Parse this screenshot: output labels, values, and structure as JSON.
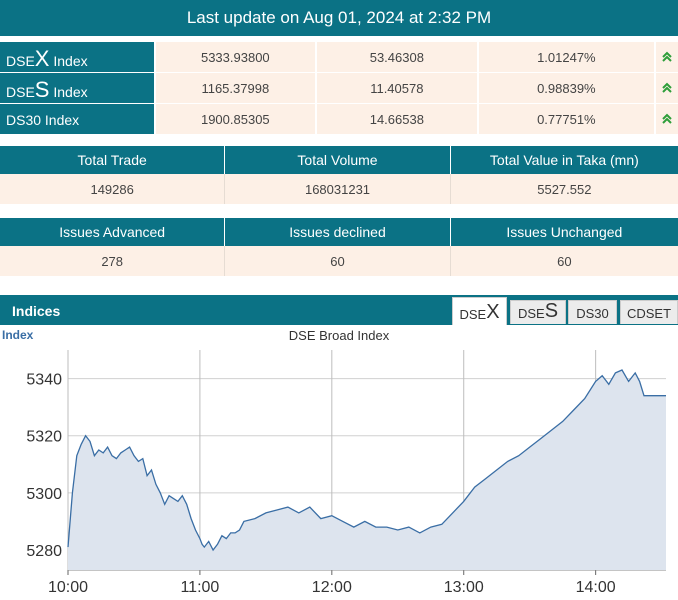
{
  "banner": {
    "text": "Last update on Aug 01, 2024 at 2:32 PM"
  },
  "indices": [
    {
      "prefix": "DSE",
      "big": "X",
      "suffix": " Index",
      "value": "5333.93800",
      "change": "53.46308",
      "pct": "1.01247%"
    },
    {
      "prefix": "DSE",
      "big": "S",
      "suffix": " Index",
      "value": "1165.37998",
      "change": "11.40578",
      "pct": "0.98839%"
    },
    {
      "prefix": "DS30 Index",
      "big": "",
      "suffix": "",
      "value": "1900.85305",
      "change": "14.66538",
      "pct": "0.77751%"
    }
  ],
  "trade": {
    "headers": [
      "Total Trade",
      "Total Volume",
      "Total Value in Taka (mn)"
    ],
    "values": [
      "149286",
      "168031231",
      "5527.552"
    ]
  },
  "issues": {
    "headers": [
      "Issues Advanced",
      "Issues declined",
      "Issues Unchanged"
    ],
    "values": [
      "278",
      "60",
      "60"
    ]
  },
  "indices_panel": {
    "title": "Indices",
    "tabs": [
      {
        "prefix": "DSE",
        "big": "X",
        "active": true
      },
      {
        "prefix": "DSE",
        "big": "S",
        "active": false
      },
      {
        "prefix": "DS30",
        "big": "",
        "active": false
      },
      {
        "prefix": "CDSET",
        "big": "",
        "active": false
      }
    ]
  },
  "colors": {
    "header": "#0b7285",
    "cell_bg": "#fdf0e6",
    "up_arrow": "#2e9e3a",
    "line": "#3a6ea5",
    "area": "#dde4ee"
  },
  "chart_data": {
    "type": "area",
    "title": "DSE Broad Index",
    "ylabel": "Index",
    "xlabel": "",
    "x_ticks": [
      "10:00",
      "11:00",
      "12:00",
      "13:00",
      "14:00"
    ],
    "y_ticks": [
      5280,
      5300,
      5320,
      5340
    ],
    "ylim": [
      5273,
      5350
    ],
    "xlim_minutes": [
      0,
      272
    ],
    "grid": true,
    "series": [
      {
        "x": [
          0,
          2,
          4,
          6,
          8,
          10,
          12,
          14,
          16,
          18,
          20,
          22,
          24,
          26,
          28,
          30,
          32,
          34,
          36,
          38,
          40,
          42,
          44,
          46,
          48,
          50,
          52,
          54,
          56,
          58,
          60,
          61,
          62,
          64,
          66,
          68,
          70,
          72,
          74,
          76,
          78,
          80,
          85,
          90,
          95,
          100,
          105,
          110,
          115,
          120,
          125,
          130,
          135,
          140,
          145,
          150,
          155,
          160,
          165,
          170,
          175,
          180,
          185,
          190,
          195,
          200,
          205,
          210,
          215,
          220,
          225,
          230,
          235,
          240,
          243,
          246,
          249,
          252,
          255,
          258,
          260,
          262,
          264,
          266,
          268,
          270,
          272
        ],
        "y": [
          5281,
          5300,
          5313,
          5317,
          5320,
          5318,
          5313,
          5315,
          5314,
          5316,
          5313,
          5312,
          5314,
          5315,
          5316,
          5313,
          5311,
          5312,
          5306,
          5308,
          5303,
          5300,
          5296,
          5299,
          5298,
          5297,
          5299,
          5296,
          5291,
          5287,
          5284,
          5282,
          5281,
          5283,
          5280,
          5282,
          5285,
          5284,
          5286,
          5286,
          5287,
          5290,
          5291,
          5293,
          5294,
          5295,
          5293,
          5295,
          5291,
          5292,
          5290,
          5288,
          5290,
          5288,
          5288,
          5287,
          5288,
          5286,
          5288,
          5289,
          5293,
          5297,
          5302,
          5305,
          5308,
          5311,
          5313,
          5316,
          5319,
          5322,
          5325,
          5329,
          5333,
          5339,
          5341,
          5338,
          5342,
          5343,
          5339,
          5342,
          5339,
          5334,
          5334,
          5334,
          5334,
          5334,
          5334
        ]
      }
    ]
  }
}
